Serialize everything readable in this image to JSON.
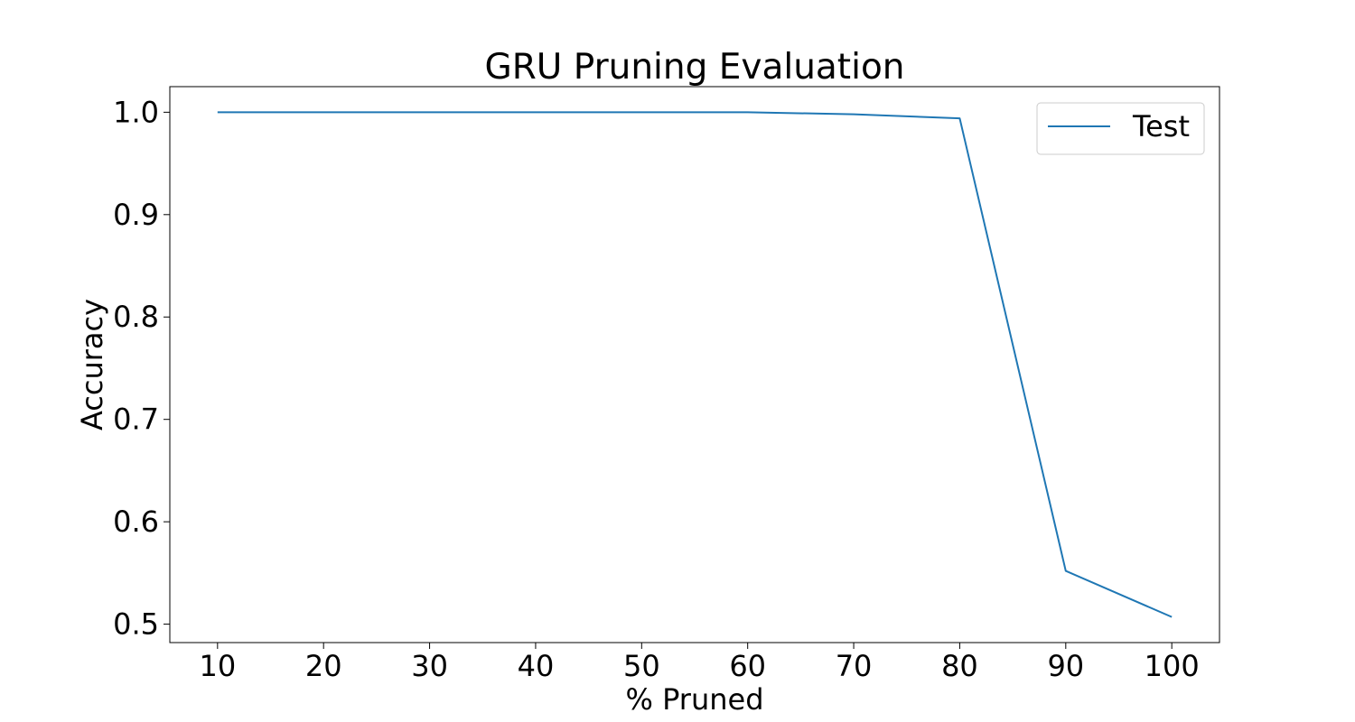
{
  "chart_data": {
    "type": "line",
    "title": "GRU Pruning Evaluation",
    "xlabel": "% Pruned",
    "ylabel": "Accuracy",
    "x": [
      10,
      20,
      30,
      40,
      50,
      60,
      70,
      80,
      90,
      100
    ],
    "xticks": [
      "10",
      "20",
      "30",
      "40",
      "50",
      "60",
      "70",
      "80",
      "90",
      "100"
    ],
    "yticks": [
      "0.5",
      "0.6",
      "0.7",
      "0.8",
      "0.9",
      "1.0"
    ],
    "ytick_values": [
      0.5,
      0.6,
      0.7,
      0.8,
      0.9,
      1.0
    ],
    "xlim": [
      5.5,
      104.5
    ],
    "ylim": [
      0.482,
      1.025
    ],
    "grid": false,
    "legend_position": "upper right",
    "series": [
      {
        "name": "Test",
        "color": "#1f77b4",
        "values": [
          1.0,
          1.0,
          1.0,
          1.0,
          1.0,
          1.0,
          0.998,
          0.994,
          0.552,
          0.507
        ]
      }
    ]
  }
}
